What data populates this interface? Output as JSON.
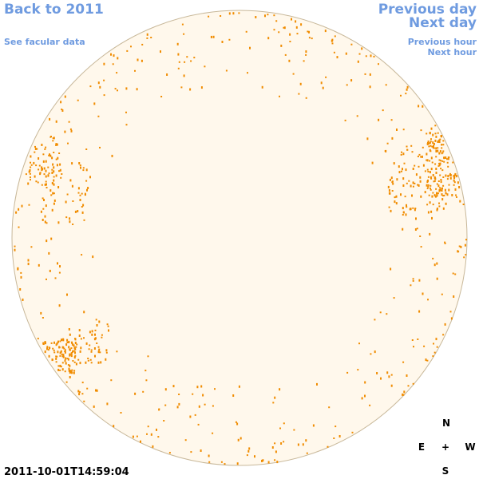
{
  "nav": {
    "back": "Back to 2011",
    "facular": "See facular data",
    "previous_day": "Previous day",
    "next_day": "Next day",
    "previous_hour": "Previous hour",
    "next_hour": "Next hour"
  },
  "compass": {
    "north": "N",
    "east": "E",
    "center": "+",
    "west": "W",
    "south": "S"
  },
  "timestamp": "2011-10-01T14:59:04"
}
